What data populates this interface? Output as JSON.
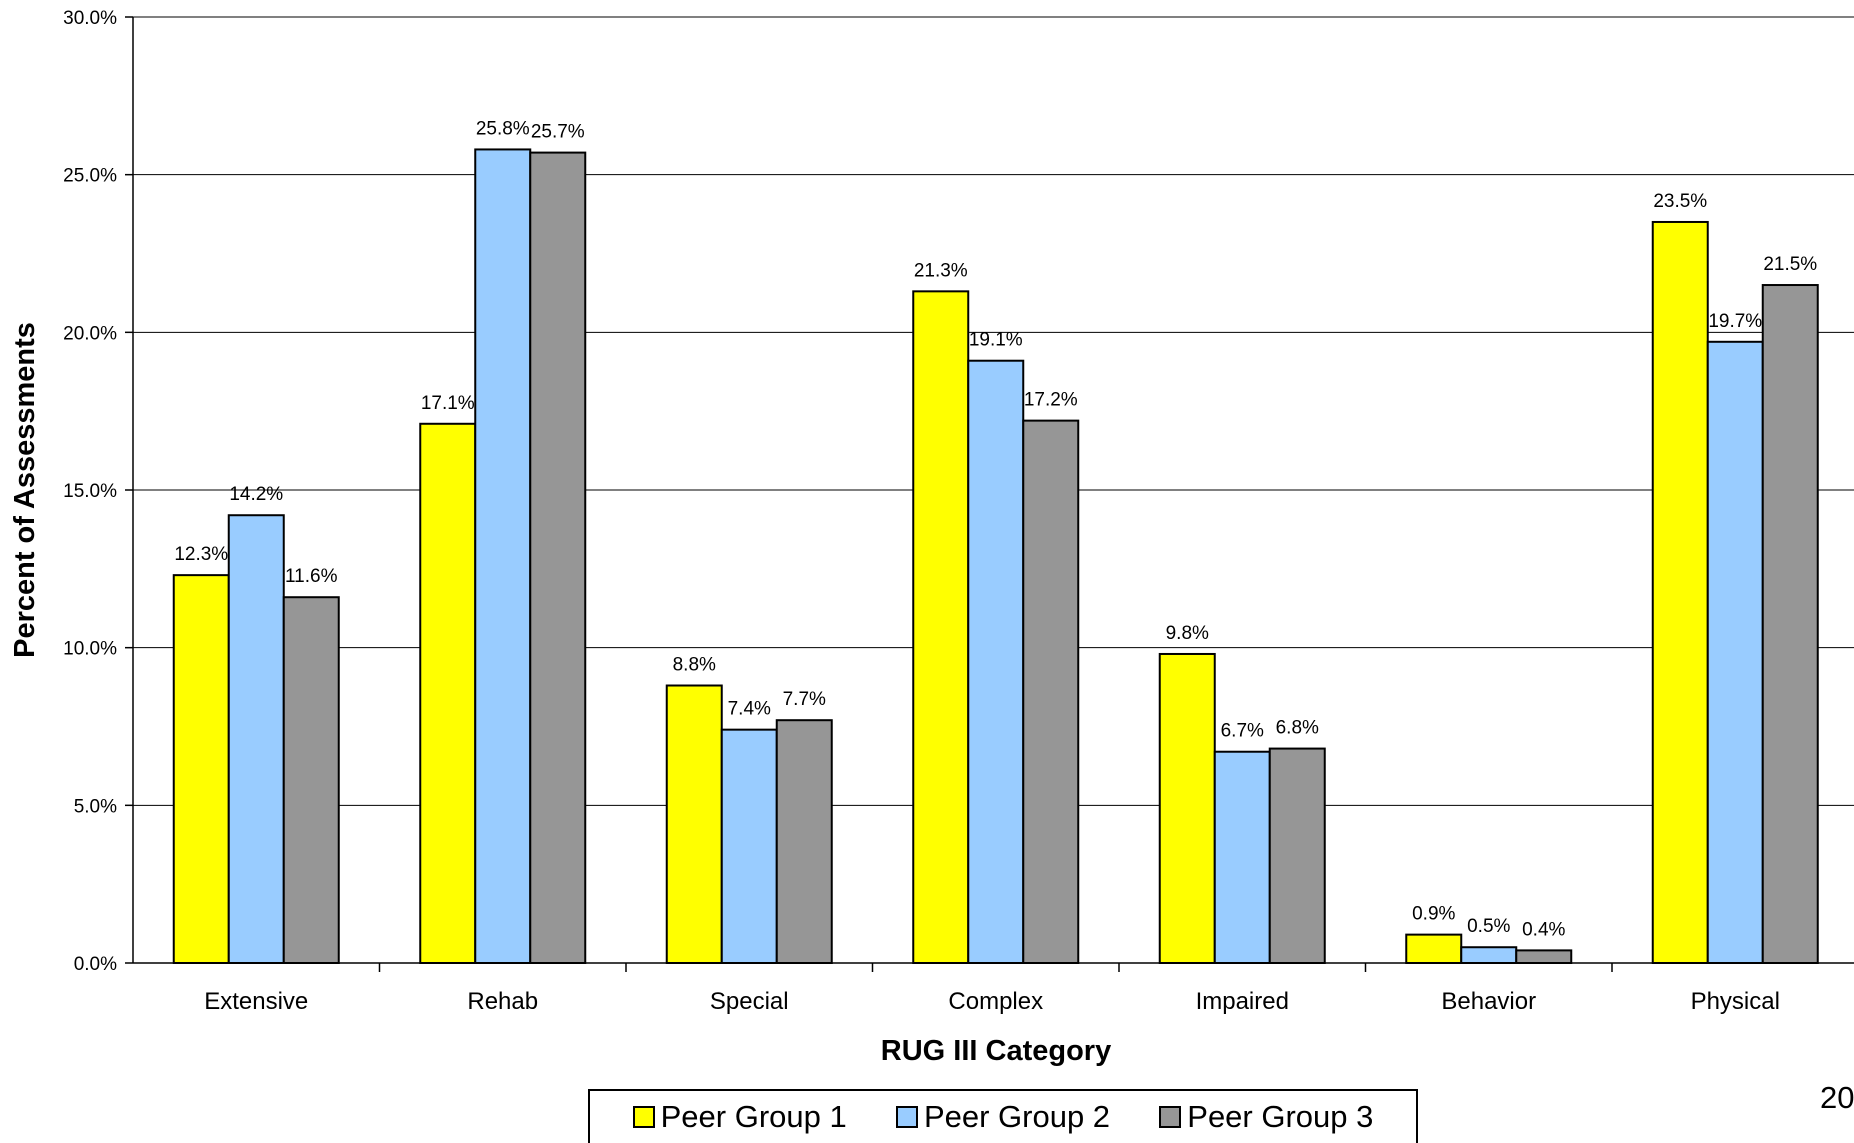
{
  "page_number": "20",
  "colors": {
    "peer_group_1": "#ffff00",
    "peer_group_2": "#99ccff",
    "peer_group_3": "#969696",
    "bar_outline": "#000000",
    "gridline": "#000000"
  },
  "chart_data": {
    "type": "bar",
    "title": "",
    "xlabel": "RUG III Category",
    "ylabel": "Percent of Assessments",
    "ylim": [
      0,
      30
    ],
    "ytick_labels": [
      "0.0%",
      "5.0%",
      "10.0%",
      "15.0%",
      "20.0%",
      "25.0%",
      "30.0%"
    ],
    "grid": "horizontal",
    "legend_position": "bottom",
    "categories": [
      "Extensive",
      "Rehab",
      "Special",
      "Complex",
      "Impaired",
      "Behavior",
      "Physical"
    ],
    "series": [
      {
        "name": "Peer Group 1",
        "color": "#ffff00",
        "values": [
          12.3,
          17.1,
          8.8,
          21.3,
          9.8,
          0.9,
          23.5
        ],
        "labels": [
          "12.3%",
          "17.1%",
          "8.8%",
          "21.3%",
          "9.8%",
          "0.9%",
          "23.5%"
        ]
      },
      {
        "name": "Peer Group 2",
        "color": "#99ccff",
        "values": [
          14.2,
          25.8,
          7.4,
          19.1,
          6.7,
          0.5,
          19.7
        ],
        "labels": [
          "14.2%",
          "25.8%",
          "7.4%",
          "19.1%",
          "6.7%",
          "0.5%",
          "19.7%"
        ]
      },
      {
        "name": "Peer Group 3",
        "color": "#969696",
        "values": [
          11.6,
          25.7,
          7.7,
          17.2,
          6.8,
          0.4,
          21.5
        ],
        "labels": [
          "11.6%",
          "25.7%",
          "7.7%",
          "17.2%",
          "6.8%",
          "0.4%",
          "21.5%"
        ]
      }
    ]
  }
}
